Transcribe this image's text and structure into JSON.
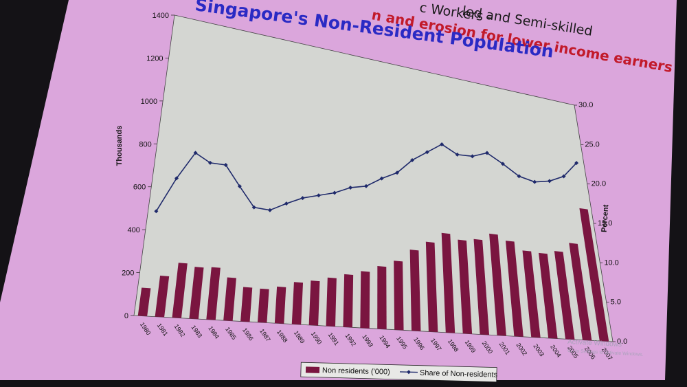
{
  "header": {
    "line1": "led and Semi-skilled",
    "line2": "c Workers -",
    "line3": "n and erosion  for lower income earners",
    "title": "Singapore's Non-Resident Population"
  },
  "colors": {
    "bar": "#7a1540",
    "line": "#1f2a6b",
    "plot_bg": "#d4d6d2",
    "slide_bg": "#dba6dc",
    "title_blue": "#2a2ac4",
    "subtitle_red": "#c21a2a"
  },
  "watermark": {
    "line1": "Activate Windows",
    "line2": "Go to Settings to activate Windows."
  },
  "chart_data": {
    "type": "bar",
    "title": "Singapore's Non-Resident Population",
    "categories": [
      "1980",
      "1981",
      "1982",
      "1983",
      "1984",
      "1985",
      "1986",
      "1987",
      "1988",
      "1989",
      "1990",
      "1991",
      "1992",
      "1993",
      "1994",
      "1995",
      "1996",
      "1997",
      "1998",
      "1999",
      "2000",
      "2001",
      "2002",
      "2003",
      "2004",
      "2005",
      "2006",
      "2007"
    ],
    "series": [
      {
        "name": "Non residents ('000)",
        "type": "bar",
        "axis": "left",
        "values": [
          131,
          193,
          260,
          247,
          252,
          209,
          168,
          166,
          182,
          211,
          225,
          247,
          271,
          294,
          328,
          364,
          431,
          482,
          539,
          512,
          525,
          565,
          536,
          491,
          487,
          508,
          565,
          780
        ]
      },
      {
        "name": "Share of Non-residents",
        "type": "line",
        "axis": "right",
        "values": [
          10.5,
          14.0,
          16.8,
          16.0,
          16.0,
          14.0,
          12.0,
          11.9,
          12.8,
          13.6,
          14.1,
          14.6,
          15.4,
          15.8,
          16.9,
          17.8,
          19.5,
          20.7,
          21.9,
          21.0,
          21.1,
          21.8,
          20.8,
          19.6,
          19.2,
          19.6,
          20.5,
          22.5
        ]
      }
    ],
    "ylabel": "Thousands",
    "y2label": "Percent",
    "ylim": [
      0,
      1400
    ],
    "y2lim": [
      0,
      30
    ],
    "yticks": [
      "0",
      "200",
      "400",
      "600",
      "800",
      "1000",
      "1200",
      "1400"
    ],
    "y2ticks": [
      "0.0",
      "5.0",
      "10.0",
      "15.0",
      "20.0",
      "25.0",
      "30.0"
    ],
    "legend": [
      "Non residents ('000)",
      "Share of Non-residents"
    ],
    "legend_position": "bottom",
    "grid": false
  }
}
